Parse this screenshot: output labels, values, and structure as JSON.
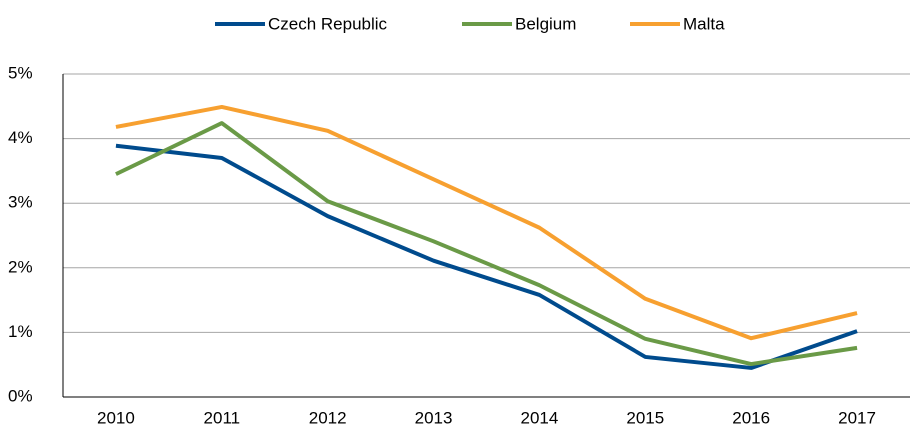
{
  "chart_data": {
    "type": "line",
    "categories": [
      "2010",
      "2011",
      "2012",
      "2013",
      "2014",
      "2015",
      "2016",
      "2017"
    ],
    "series": [
      {
        "name": "Czech Republic",
        "color": "#004b8d",
        "values": [
          3.89,
          3.7,
          2.8,
          2.11,
          1.58,
          0.62,
          0.45,
          1.02
        ]
      },
      {
        "name": "Belgium",
        "color": "#6a9a47",
        "values": [
          3.45,
          4.24,
          3.03,
          2.41,
          1.73,
          0.9,
          0.51,
          0.76
        ]
      },
      {
        "name": "Malta",
        "color": "#f7a030",
        "values": [
          4.18,
          4.49,
          4.12,
          3.37,
          2.62,
          1.52,
          0.91,
          1.3
        ]
      }
    ],
    "ylim": [
      0,
      5
    ],
    "yticks": [
      {
        "value": 0,
        "label": "0%"
      },
      {
        "value": 1,
        "label": "1%"
      },
      {
        "value": 2,
        "label": "2%"
      },
      {
        "value": 3,
        "label": "3%"
      },
      {
        "value": 4,
        "label": "4%"
      },
      {
        "value": 5,
        "label": "5%"
      }
    ],
    "grid": true,
    "legend": "top"
  }
}
